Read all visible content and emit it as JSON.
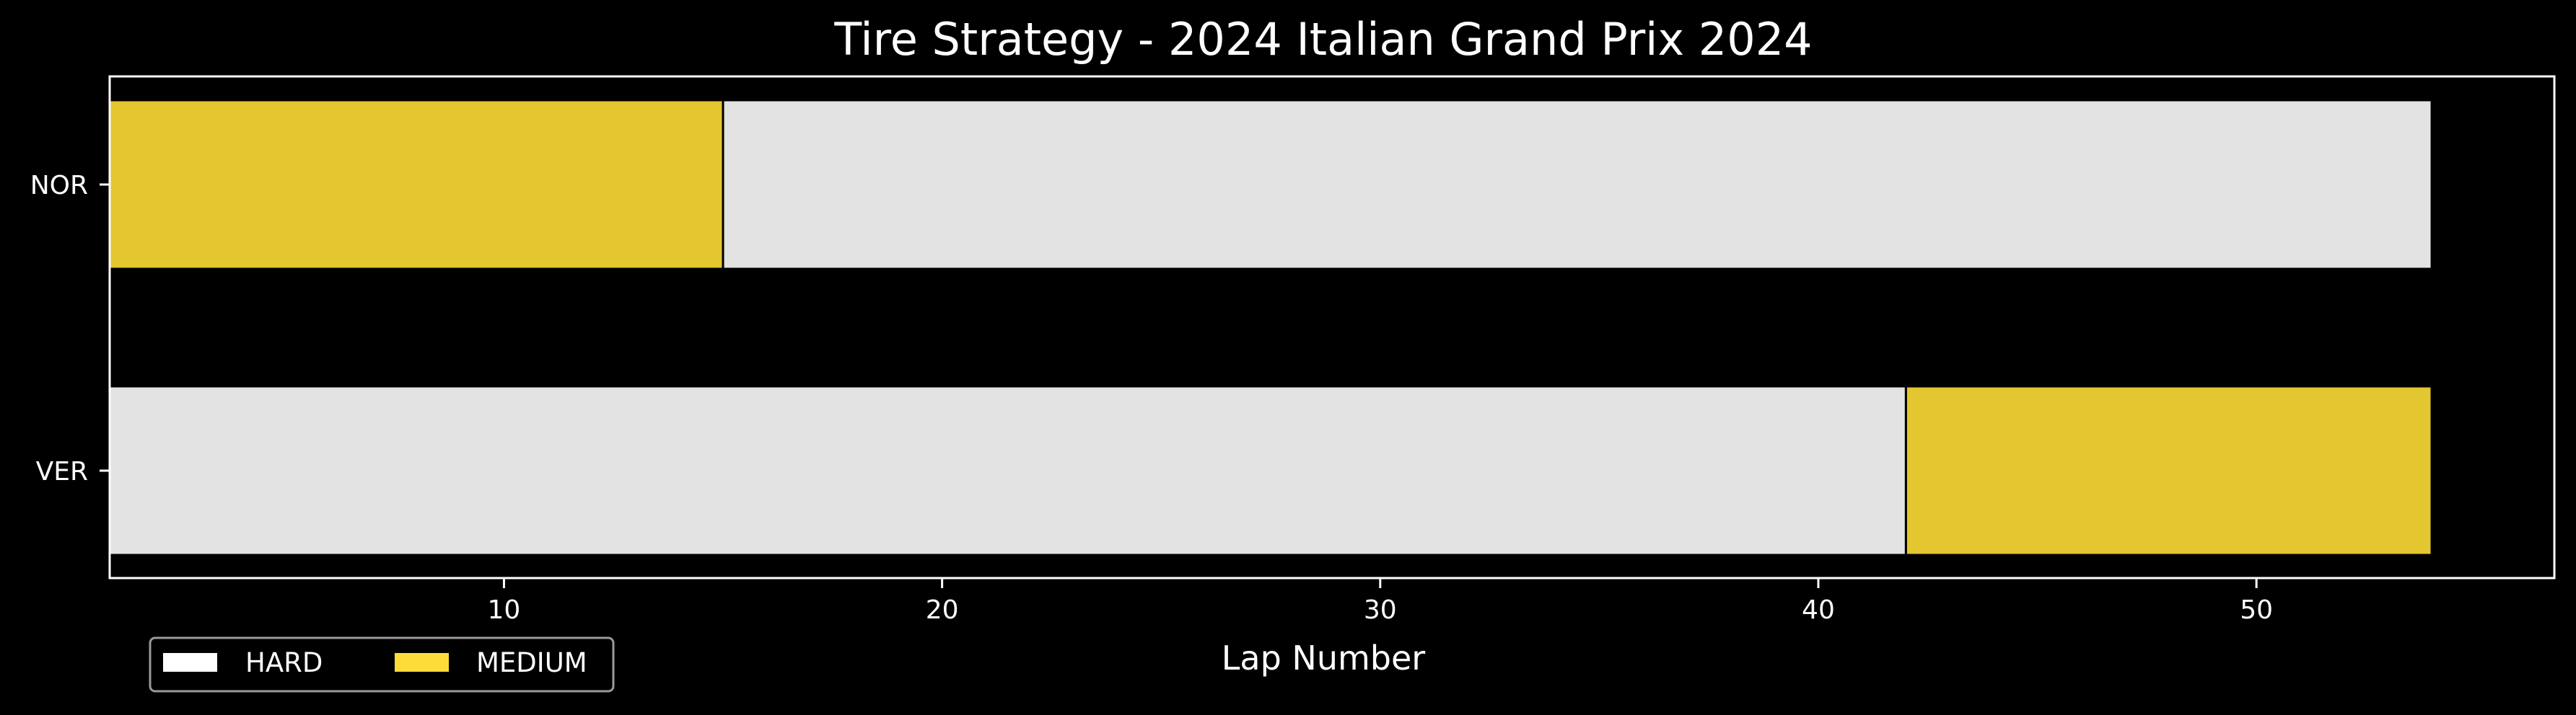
{
  "chart_data": {
    "type": "bar",
    "orientation": "horizontal-stacked",
    "title": "Tire Strategy - 2024 Italian Grand Prix 2024",
    "xlabel": "Lap Number",
    "ylabel": "",
    "xlim": [
      1,
      56.8
    ],
    "x_ticks": [
      10,
      20,
      30,
      40,
      50
    ],
    "categories": [
      "NOR",
      "VER"
    ],
    "compound_colors": {
      "HARD": "#e3e3e3",
      "MEDIUM": "#e4c630"
    },
    "legend": {
      "placement": "bottom-left",
      "entries": [
        {
          "label": "HARD",
          "color": "#ffffff"
        },
        {
          "label": "MEDIUM",
          "color": "#fddc3a"
        }
      ]
    },
    "stints": [
      {
        "driver": "NOR",
        "compound": "MEDIUM",
        "start_lap": 1,
        "end_lap": 15
      },
      {
        "driver": "NOR",
        "compound": "HARD",
        "start_lap": 15,
        "end_lap": 54
      },
      {
        "driver": "VER",
        "compound": "HARD",
        "start_lap": 1,
        "end_lap": 42
      },
      {
        "driver": "VER",
        "compound": "MEDIUM",
        "start_lap": 42,
        "end_lap": 54
      }
    ],
    "grid": false,
    "background": "#000000"
  }
}
